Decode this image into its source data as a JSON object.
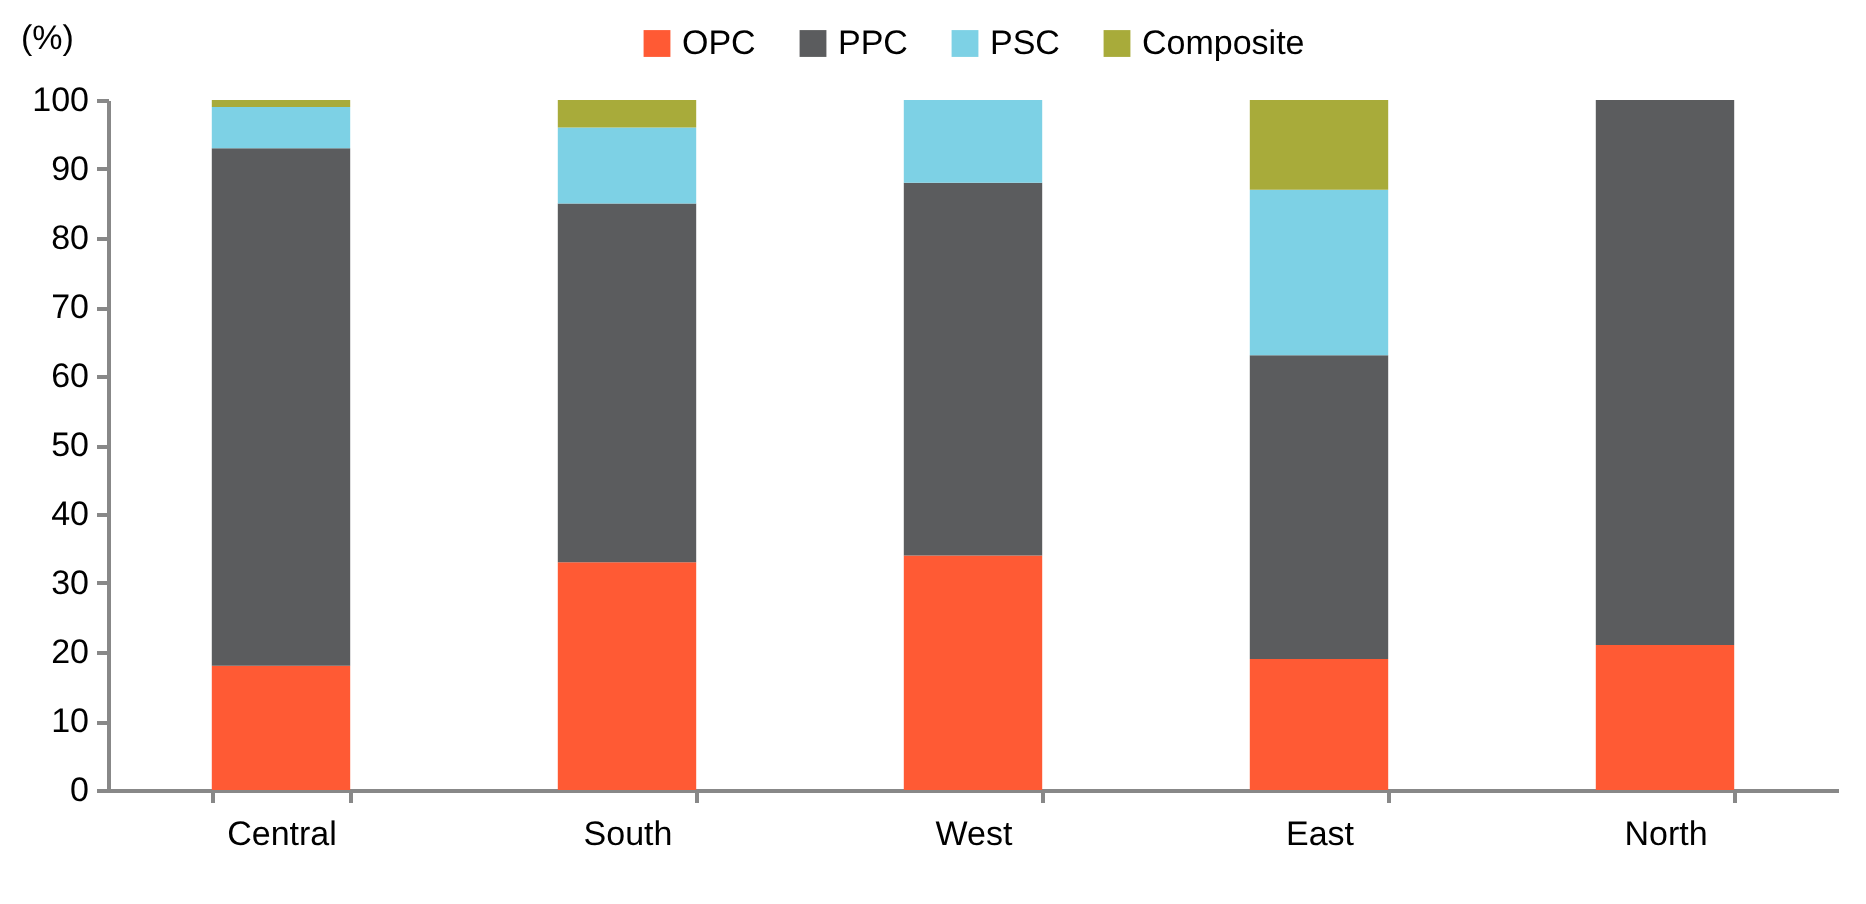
{
  "chart_data": {
    "type": "bar",
    "stacked": true,
    "ylabel": "(%)",
    "categories": [
      "Central",
      "South",
      "West",
      "East",
      "North"
    ],
    "series": [
      {
        "name": "OPC",
        "color": "#ff5a34",
        "values": [
          18,
          33,
          34,
          19,
          21
        ]
      },
      {
        "name": "PPC",
        "color": "#5b5c5e",
        "values": [
          75,
          52,
          54,
          44,
          79
        ]
      },
      {
        "name": "PSC",
        "color": "#7dd1e5",
        "values": [
          6,
          11,
          12,
          24,
          0
        ]
      },
      {
        "name": "Composite",
        "color": "#a8ab3a",
        "values": [
          1,
          4,
          0,
          13,
          0
        ]
      }
    ],
    "ylim": [
      0,
      100
    ],
    "yticks": [
      0,
      10,
      20,
      30,
      40,
      50,
      60,
      70,
      80,
      90,
      100
    ],
    "grid": false,
    "legend": "top"
  }
}
